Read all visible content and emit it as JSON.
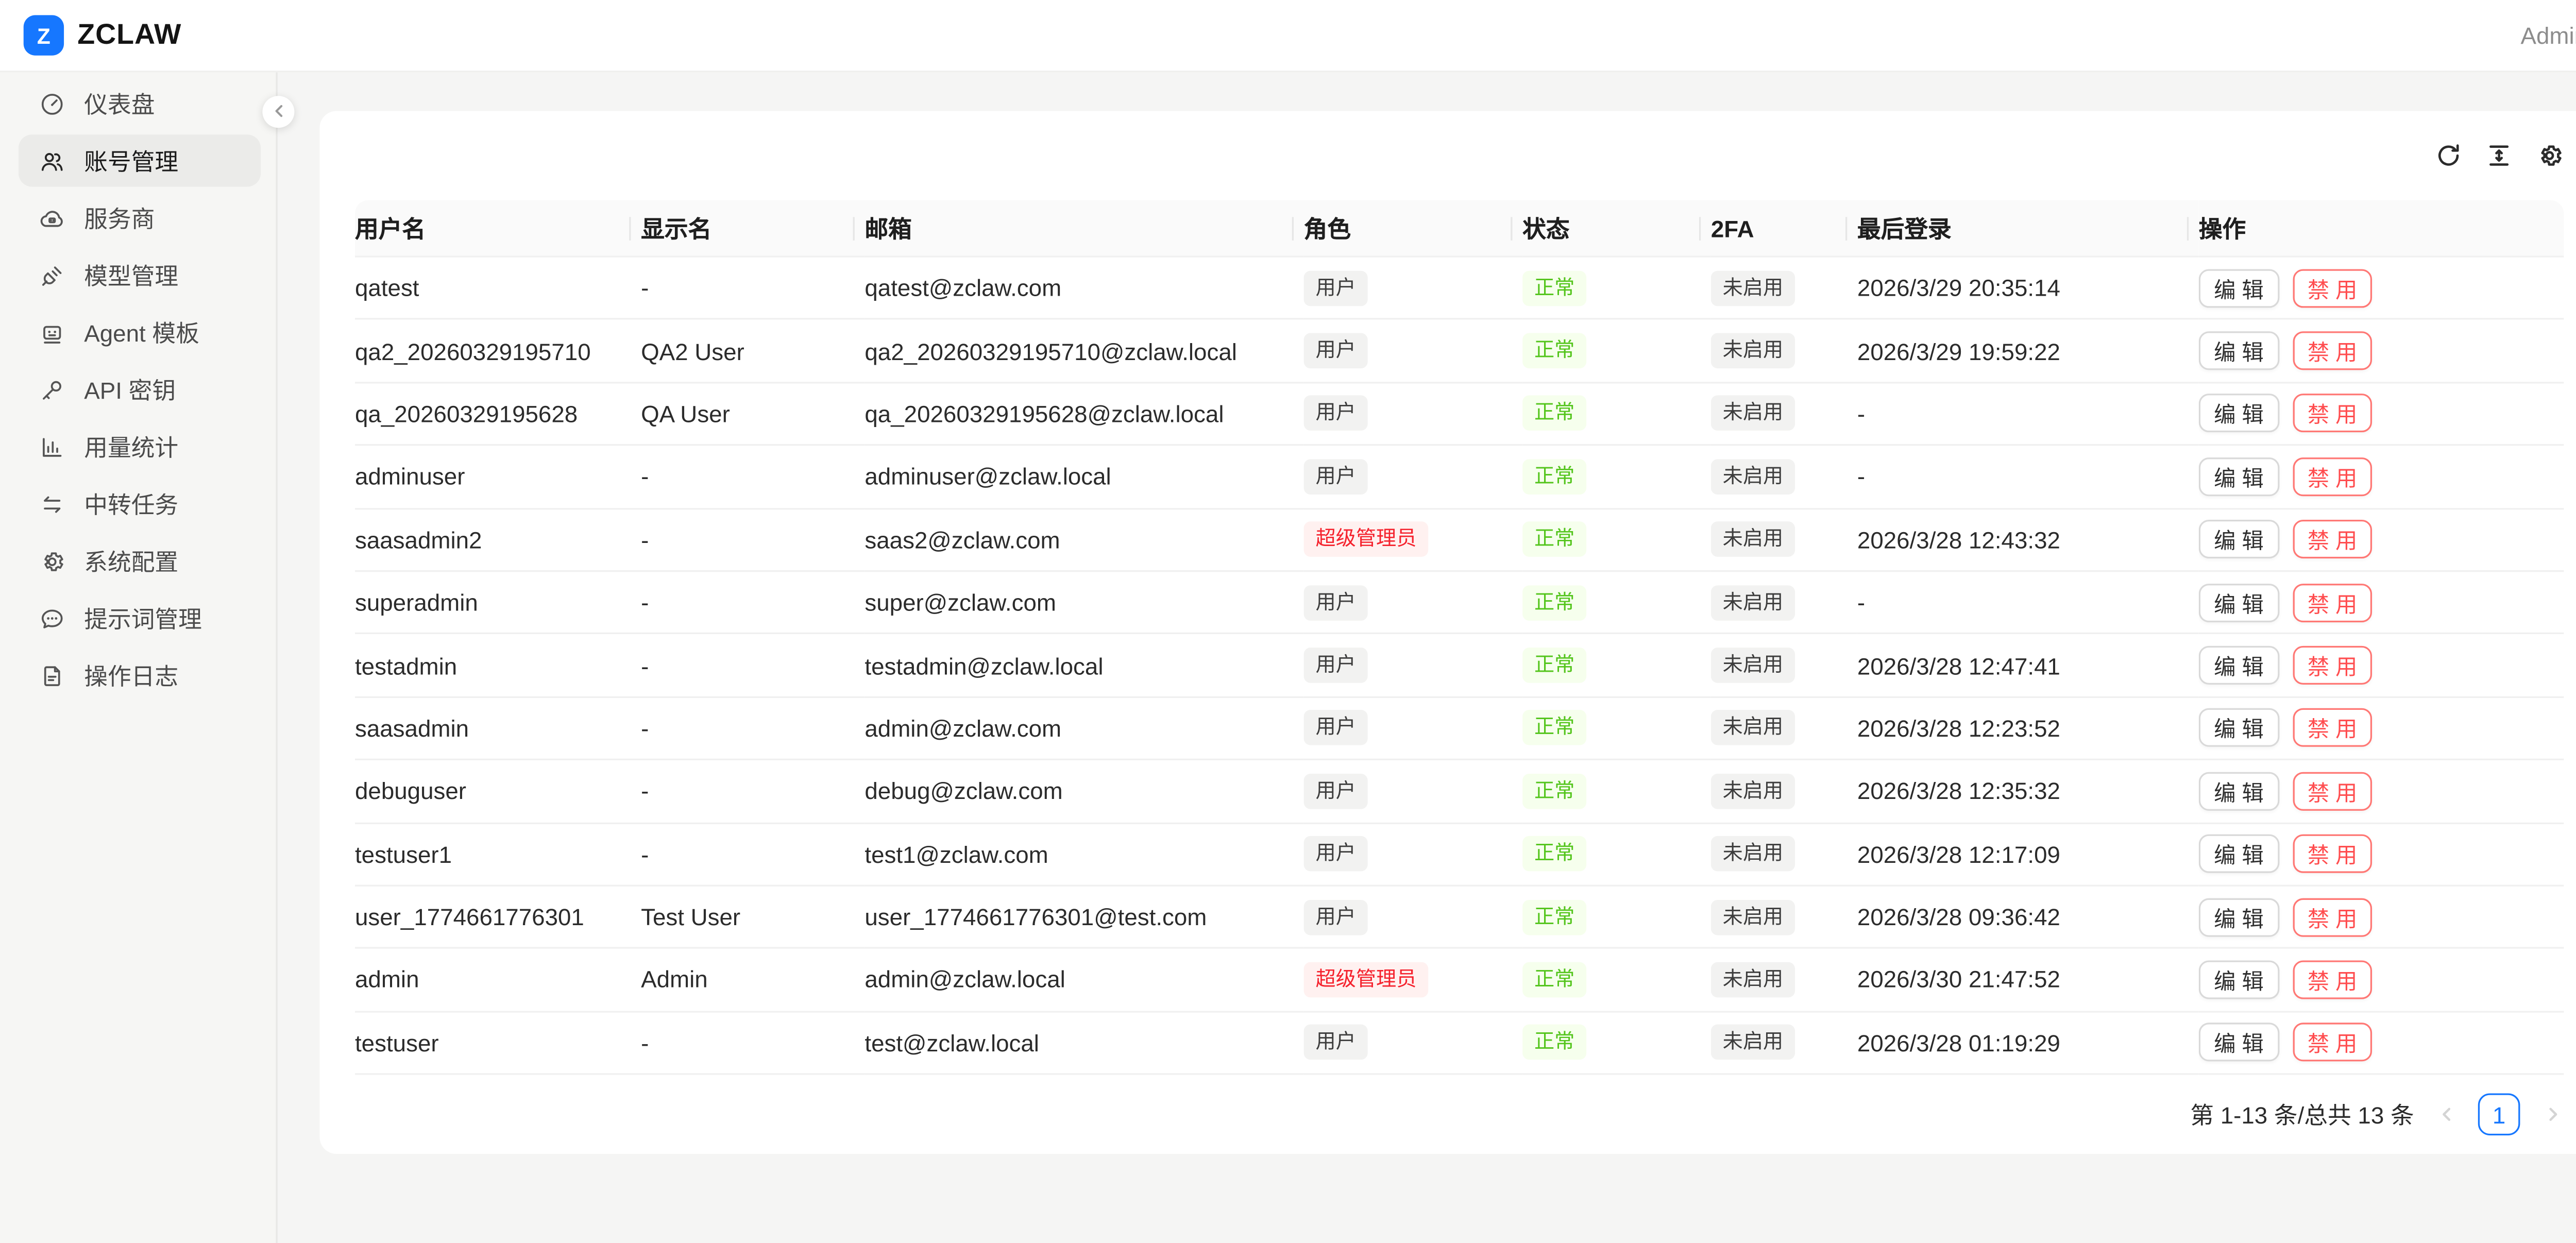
{
  "header": {
    "logo_letter": "Z",
    "brand": "ZCLAW",
    "user": "Admin"
  },
  "colors": {
    "accent_blue": "#1677ff",
    "success_text": "#52c41a",
    "success_bg": "#f6ffed",
    "danger_text": "#f5222d",
    "danger_bg": "#fff1f0",
    "tag_default_bg": "#f2f2f1",
    "button_danger_border": "#ff7875"
  },
  "sidebar": {
    "items": [
      {
        "icon": "gauge-icon",
        "label": "仪表盘",
        "active": false
      },
      {
        "icon": "users-icon",
        "label": "账号管理",
        "active": true
      },
      {
        "icon": "cloud-icon",
        "label": "服务商",
        "active": false
      },
      {
        "icon": "plug-icon",
        "label": "模型管理",
        "active": false
      },
      {
        "icon": "bot-icon",
        "label": "Agent 模板",
        "active": false
      },
      {
        "icon": "key-icon",
        "label": "API 密钥",
        "active": false
      },
      {
        "icon": "chart-icon",
        "label": "用量统计",
        "active": false
      },
      {
        "icon": "swap-icon",
        "label": "中转任务",
        "active": false
      },
      {
        "icon": "gear-icon",
        "label": "系统配置",
        "active": false
      },
      {
        "icon": "chat-icon",
        "label": "提示词管理",
        "active": false
      },
      {
        "icon": "file-icon",
        "label": "操作日志",
        "active": false
      }
    ],
    "collapse_icon": "chevron-left-icon"
  },
  "toolbar": {
    "icons": [
      "reload-icon",
      "column-height-icon",
      "settings-icon"
    ]
  },
  "table": {
    "columns": [
      "用户名",
      "显示名",
      "邮箱",
      "角色",
      "状态",
      "2FA",
      "最后登录",
      "操作"
    ],
    "edit_label": "编 辑",
    "disable_label": "禁 用",
    "rows": [
      {
        "username": "qatest",
        "display_name": "-",
        "email": "qatest@zclaw.com",
        "role": {
          "label": "用户",
          "type": "default"
        },
        "status": {
          "label": "正常",
          "type": "success"
        },
        "twofa": {
          "label": "未启用",
          "type": "default"
        },
        "last_login": "2026/3/29 20:35:14"
      },
      {
        "username": "qa2_20260329195710",
        "display_name": "QA2 User",
        "email": "qa2_20260329195710@zclaw.local",
        "role": {
          "label": "用户",
          "type": "default"
        },
        "status": {
          "label": "正常",
          "type": "success"
        },
        "twofa": {
          "label": "未启用",
          "type": "default"
        },
        "last_login": "2026/3/29 19:59:22"
      },
      {
        "username": "qa_20260329195628",
        "display_name": "QA User",
        "email": "qa_20260329195628@zclaw.local",
        "role": {
          "label": "用户",
          "type": "default"
        },
        "status": {
          "label": "正常",
          "type": "success"
        },
        "twofa": {
          "label": "未启用",
          "type": "default"
        },
        "last_login": "-"
      },
      {
        "username": "adminuser",
        "display_name": "-",
        "email": "adminuser@zclaw.local",
        "role": {
          "label": "用户",
          "type": "default"
        },
        "status": {
          "label": "正常",
          "type": "success"
        },
        "twofa": {
          "label": "未启用",
          "type": "default"
        },
        "last_login": "-"
      },
      {
        "username": "saasadmin2",
        "display_name": "-",
        "email": "saas2@zclaw.com",
        "role": {
          "label": "超级管理员",
          "type": "danger"
        },
        "status": {
          "label": "正常",
          "type": "success"
        },
        "twofa": {
          "label": "未启用",
          "type": "default"
        },
        "last_login": "2026/3/28 12:43:32"
      },
      {
        "username": "superadmin",
        "display_name": "-",
        "email": "super@zclaw.com",
        "role": {
          "label": "用户",
          "type": "default"
        },
        "status": {
          "label": "正常",
          "type": "success"
        },
        "twofa": {
          "label": "未启用",
          "type": "default"
        },
        "last_login": "-"
      },
      {
        "username": "testadmin",
        "display_name": "-",
        "email": "testadmin@zclaw.local",
        "role": {
          "label": "用户",
          "type": "default"
        },
        "status": {
          "label": "正常",
          "type": "success"
        },
        "twofa": {
          "label": "未启用",
          "type": "default"
        },
        "last_login": "2026/3/28 12:47:41"
      },
      {
        "username": "saasadmin",
        "display_name": "-",
        "email": "admin@zclaw.com",
        "role": {
          "label": "用户",
          "type": "default"
        },
        "status": {
          "label": "正常",
          "type": "success"
        },
        "twofa": {
          "label": "未启用",
          "type": "default"
        },
        "last_login": "2026/3/28 12:23:52"
      },
      {
        "username": "debuguser",
        "display_name": "-",
        "email": "debug@zclaw.com",
        "role": {
          "label": "用户",
          "type": "default"
        },
        "status": {
          "label": "正常",
          "type": "success"
        },
        "twofa": {
          "label": "未启用",
          "type": "default"
        },
        "last_login": "2026/3/28 12:35:32"
      },
      {
        "username": "testuser1",
        "display_name": "-",
        "email": "test1@zclaw.com",
        "role": {
          "label": "用户",
          "type": "default"
        },
        "status": {
          "label": "正常",
          "type": "success"
        },
        "twofa": {
          "label": "未启用",
          "type": "default"
        },
        "last_login": "2026/3/28 12:17:09"
      },
      {
        "username": "user_1774661776301",
        "display_name": "Test User",
        "email": "user_1774661776301@test.com",
        "role": {
          "label": "用户",
          "type": "default"
        },
        "status": {
          "label": "正常",
          "type": "success"
        },
        "twofa": {
          "label": "未启用",
          "type": "default"
        },
        "last_login": "2026/3/28 09:36:42"
      },
      {
        "username": "admin",
        "display_name": "Admin",
        "email": "admin@zclaw.local",
        "role": {
          "label": "超级管理员",
          "type": "danger"
        },
        "status": {
          "label": "正常",
          "type": "success"
        },
        "twofa": {
          "label": "未启用",
          "type": "default"
        },
        "last_login": "2026/3/30 21:47:52"
      },
      {
        "username": "testuser",
        "display_name": "-",
        "email": "test@zclaw.local",
        "role": {
          "label": "用户",
          "type": "default"
        },
        "status": {
          "label": "正常",
          "type": "success"
        },
        "twofa": {
          "label": "未启用",
          "type": "default"
        },
        "last_login": "2026/3/28 01:19:29"
      }
    ]
  },
  "pagination": {
    "total_text": "第 1-13 条/总共 13 条",
    "current_page": "1",
    "prev_icon": "chevron-left-icon",
    "next_icon": "chevron-right-icon"
  }
}
